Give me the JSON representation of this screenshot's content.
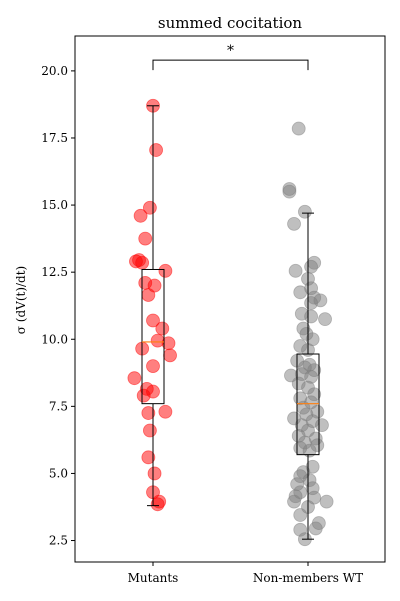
{
  "chart_data": {
    "type": "box-strip",
    "title": "summed cocitation",
    "xlabel": "",
    "ylabel": "σ (dV(t)/dt)",
    "categories": [
      "Mutants",
      "Non-members WT"
    ],
    "ylim": [
      1.7,
      21.3
    ],
    "yticks": [
      2.5,
      5.0,
      7.5,
      10.0,
      12.5,
      15.0,
      17.5,
      20.0
    ],
    "ytick_labels": [
      "2.5",
      "5.0",
      "7.5",
      "10.0",
      "12.5",
      "15.0",
      "17.5",
      "20.0"
    ],
    "significance": {
      "label": "*",
      "between": [
        "Mutants",
        "Non-members WT"
      ],
      "y": 20.4
    },
    "colors": {
      "Mutants": "#ff0000",
      "Non-members WT": "#808080",
      "median": "#ff7f0e"
    },
    "series": [
      {
        "category": "Mutants",
        "box": {
          "whisker_low": 3.8,
          "q1": 7.6,
          "median": 9.9,
          "q3": 12.6,
          "whisker_high": 18.7
        },
        "points": [
          {
            "x": 0.0,
            "y": 18.7
          },
          {
            "x": 0.02,
            "y": 17.05
          },
          {
            "x": -0.02,
            "y": 14.9
          },
          {
            "x": -0.08,
            "y": 14.6
          },
          {
            "x": -0.05,
            "y": 13.75
          },
          {
            "x": -0.09,
            "y": 12.95
          },
          {
            "x": -0.07,
            "y": 12.85
          },
          {
            "x": -0.11,
            "y": 12.9
          },
          {
            "x": 0.08,
            "y": 12.55
          },
          {
            "x": -0.05,
            "y": 12.1
          },
          {
            "x": 0.01,
            "y": 12.0
          },
          {
            "x": -0.03,
            "y": 11.65
          },
          {
            "x": 0.0,
            "y": 10.7
          },
          {
            "x": 0.06,
            "y": 10.4
          },
          {
            "x": 0.03,
            "y": 9.95
          },
          {
            "x": 0.1,
            "y": 9.85
          },
          {
            "x": -0.07,
            "y": 9.65
          },
          {
            "x": 0.11,
            "y": 9.4
          },
          {
            "x": 0.0,
            "y": 9.0
          },
          {
            "x": -0.12,
            "y": 8.55
          },
          {
            "x": -0.04,
            "y": 8.15
          },
          {
            "x": 0.0,
            "y": 8.05
          },
          {
            "x": -0.06,
            "y": 7.9
          },
          {
            "x": 0.08,
            "y": 7.3
          },
          {
            "x": -0.03,
            "y": 7.25
          },
          {
            "x": -0.02,
            "y": 6.6
          },
          {
            "x": -0.03,
            "y": 5.6
          },
          {
            "x": 0.01,
            "y": 5.0
          },
          {
            "x": 0.0,
            "y": 4.3
          },
          {
            "x": 0.04,
            "y": 3.95
          },
          {
            "x": 0.03,
            "y": 3.85
          }
        ]
      },
      {
        "category": "Non-members WT",
        "box": {
          "whisker_low": 2.55,
          "q1": 5.7,
          "median": 7.6,
          "q3": 9.45,
          "whisker_high": 14.7
        },
        "points": [
          {
            "x": -0.06,
            "y": 17.85
          },
          {
            "x": -0.12,
            "y": 15.6
          },
          {
            "x": -0.12,
            "y": 15.5
          },
          {
            "x": -0.02,
            "y": 14.75
          },
          {
            "x": -0.09,
            "y": 14.3
          },
          {
            "x": 0.04,
            "y": 12.85
          },
          {
            "x": 0.02,
            "y": 12.7
          },
          {
            "x": -0.08,
            "y": 12.55
          },
          {
            "x": 0.0,
            "y": 12.25
          },
          {
            "x": 0.02,
            "y": 11.9
          },
          {
            "x": -0.05,
            "y": 11.75
          },
          {
            "x": 0.04,
            "y": 11.55
          },
          {
            "x": 0.08,
            "y": 11.45
          },
          {
            "x": 0.02,
            "y": 11.35
          },
          {
            "x": -0.04,
            "y": 10.95
          },
          {
            "x": 0.02,
            "y": 10.85
          },
          {
            "x": 0.11,
            "y": 10.75
          },
          {
            "x": -0.03,
            "y": 10.4
          },
          {
            "x": -0.01,
            "y": 10.2
          },
          {
            "x": 0.03,
            "y": 10.0
          },
          {
            "x": -0.05,
            "y": 9.75
          },
          {
            "x": 0.0,
            "y": 9.6
          },
          {
            "x": -0.07,
            "y": 9.2
          },
          {
            "x": 0.01,
            "y": 9.05
          },
          {
            "x": -0.02,
            "y": 8.95
          },
          {
            "x": 0.04,
            "y": 8.85
          },
          {
            "x": -0.04,
            "y": 8.7
          },
          {
            "x": -0.11,
            "y": 8.65
          },
          {
            "x": 0.02,
            "y": 8.6
          },
          {
            "x": -0.06,
            "y": 8.35
          },
          {
            "x": 0.0,
            "y": 8.2
          },
          {
            "x": 0.04,
            "y": 7.95
          },
          {
            "x": -0.05,
            "y": 7.8
          },
          {
            "x": 0.02,
            "y": 7.65
          },
          {
            "x": -0.03,
            "y": 7.45
          },
          {
            "x": 0.06,
            "y": 7.3
          },
          {
            "x": -0.01,
            "y": 7.2
          },
          {
            "x": -0.09,
            "y": 7.05
          },
          {
            "x": 0.03,
            "y": 6.95
          },
          {
            "x": -0.04,
            "y": 6.8
          },
          {
            "x": 0.09,
            "y": 6.8
          },
          {
            "x": 0.0,
            "y": 6.6
          },
          {
            "x": -0.06,
            "y": 6.4
          },
          {
            "x": 0.05,
            "y": 6.3
          },
          {
            "x": -0.02,
            "y": 6.15
          },
          {
            "x": 0.06,
            "y": 6.05
          },
          {
            "x": -0.05,
            "y": 5.95
          },
          {
            "x": 0.01,
            "y": 5.85
          },
          {
            "x": 0.03,
            "y": 5.25
          },
          {
            "x": -0.03,
            "y": 5.05
          },
          {
            "x": -0.05,
            "y": 4.9
          },
          {
            "x": 0.01,
            "y": 4.75
          },
          {
            "x": -0.07,
            "y": 4.6
          },
          {
            "x": 0.03,
            "y": 4.45
          },
          {
            "x": -0.05,
            "y": 4.3
          },
          {
            "x": -0.08,
            "y": 4.15
          },
          {
            "x": 0.04,
            "y": 4.1
          },
          {
            "x": -0.09,
            "y": 3.95
          },
          {
            "x": 0.12,
            "y": 3.95
          },
          {
            "x": 0.0,
            "y": 3.75
          },
          {
            "x": -0.05,
            "y": 3.45
          },
          {
            "x": 0.07,
            "y": 3.15
          },
          {
            "x": 0.05,
            "y": 2.95
          },
          {
            "x": -0.05,
            "y": 2.9
          },
          {
            "x": -0.02,
            "y": 2.55
          }
        ]
      }
    ]
  }
}
